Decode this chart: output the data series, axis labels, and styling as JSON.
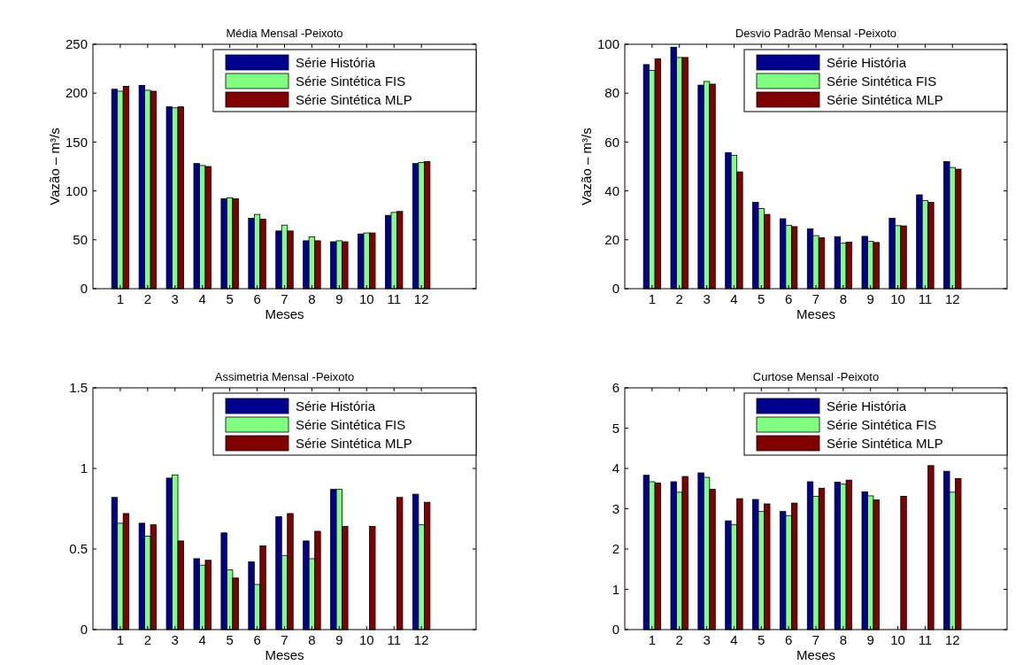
{
  "chart_data": [
    {
      "type": "bar",
      "title": "Média Mensal -Peixoto",
      "xlabel": "Meses",
      "ylabel": "Vazão – m³/s",
      "x": [
        1,
        2,
        3,
        4,
        5,
        6,
        7,
        8,
        9,
        10,
        11,
        12
      ],
      "xlim": [
        0,
        14
      ],
      "xticks": [
        1,
        2,
        3,
        4,
        5,
        6,
        7,
        8,
        9,
        10,
        11,
        12
      ],
      "ylim": [
        0,
        250
      ],
      "yticks": [
        0,
        50,
        100,
        150,
        200,
        250
      ],
      "legend": "top right",
      "series": [
        {
          "name": "Série História",
          "color": "#00008f",
          "values": [
            204,
            208,
            186,
            128,
            92,
            72,
            59,
            49,
            48,
            56,
            75,
            128
          ]
        },
        {
          "name": "Série Sintética FIS",
          "color": "#80ff80",
          "values": [
            202,
            203,
            185,
            126,
            93,
            76,
            65,
            53,
            49,
            57,
            78,
            129
          ]
        },
        {
          "name": "Série Sintética MLP",
          "color": "#800000",
          "values": [
            207,
            202,
            186,
            125,
            92,
            71,
            59,
            49,
            48,
            57,
            79,
            130
          ]
        }
      ]
    },
    {
      "type": "bar",
      "title": "Desvio Padrão Mensal -Peixoto",
      "xlabel": "Meses",
      "ylabel": "Vazão – m³/s",
      "x": [
        1,
        2,
        3,
        4,
        5,
        6,
        7,
        8,
        9,
        10,
        11,
        12
      ],
      "xlim": [
        0,
        14
      ],
      "xticks": [
        1,
        2,
        3,
        4,
        5,
        6,
        7,
        8,
        9,
        10,
        11,
        12
      ],
      "ylim": [
        0,
        100
      ],
      "yticks": [
        0,
        20,
        40,
        60,
        80,
        100
      ],
      "legend": "top right",
      "series": [
        {
          "name": "Série História",
          "color": "#00008f",
          "values": [
            91.7,
            98.8,
            83.3,
            55.7,
            35.3,
            28.6,
            24.5,
            21.3,
            21.4,
            28.8,
            38.4,
            52
          ]
        },
        {
          "name": "Série Sintética FIS",
          "color": "#80ff80",
          "values": [
            89.3,
            94.6,
            84.8,
            54.6,
            32.8,
            25.9,
            21.7,
            18.6,
            19.4,
            25.8,
            36,
            49.6
          ]
        },
        {
          "name": "Série Sintética MLP",
          "color": "#800000",
          "values": [
            94,
            94.6,
            83.7,
            47.8,
            30.4,
            25.4,
            20.8,
            19,
            18.9,
            25.7,
            35.3,
            48.9
          ]
        }
      ]
    },
    {
      "type": "bar",
      "title": "Assimetria Mensal -Peixoto",
      "xlabel": "Meses",
      "x": [
        1,
        2,
        3,
        4,
        5,
        6,
        7,
        8,
        9,
        10,
        11,
        12
      ],
      "xlim": [
        0,
        14
      ],
      "xticks": [
        1,
        2,
        3,
        4,
        5,
        6,
        7,
        8,
        9,
        10,
        11,
        12
      ],
      "ylim": [
        0,
        1.5
      ],
      "yticks": [
        0,
        0.5,
        1,
        1.5
      ],
      "legend": "top right",
      "series": [
        {
          "name": "Série História",
          "color": "#00008f",
          "values": [
            0.82,
            0.66,
            0.94,
            0.44,
            0.6,
            0.42,
            0.7,
            0.55,
            0.87,
            null,
            null,
            0.84
          ]
        },
        {
          "name": "Série Sintética FIS",
          "color": "#80ff80",
          "values": [
            0.66,
            0.58,
            0.96,
            0.4,
            0.37,
            0.28,
            0.46,
            0.44,
            0.87,
            null,
            null,
            0.65
          ]
        },
        {
          "name": "Série Sintética MLP",
          "color": "#800000",
          "values": [
            0.72,
            0.65,
            0.55,
            0.43,
            0.32,
            0.52,
            0.72,
            0.61,
            0.64,
            0.64,
            0.82,
            0.79
          ]
        }
      ]
    },
    {
      "type": "bar",
      "title": "Curtose Mensal -Peixoto",
      "xlabel": "Meses",
      "x": [
        1,
        2,
        3,
        4,
        5,
        6,
        7,
        8,
        9,
        10,
        11,
        12
      ],
      "xlim": [
        0,
        14
      ],
      "xticks": [
        1,
        2,
        3,
        4,
        5,
        6,
        7,
        8,
        9,
        10,
        11,
        12
      ],
      "ylim": [
        0,
        6
      ],
      "yticks": [
        0,
        1,
        2,
        3,
        4,
        5,
        6
      ],
      "legend": "top right",
      "series": [
        {
          "name": "Série História",
          "color": "#00008f",
          "values": [
            3.83,
            3.67,
            3.89,
            2.7,
            3.23,
            2.93,
            3.67,
            3.66,
            3.42,
            null,
            null,
            3.93
          ]
        },
        {
          "name": "Série Sintética FIS",
          "color": "#80ff80",
          "values": [
            3.67,
            3.41,
            3.78,
            2.6,
            2.93,
            2.83,
            3.31,
            3.61,
            3.32,
            null,
            null,
            3.41
          ]
        },
        {
          "name": "Série Sintética MLP",
          "color": "#800000",
          "values": [
            3.64,
            3.8,
            3.48,
            3.25,
            3.12,
            3.14,
            3.51,
            3.71,
            3.22,
            3.31,
            4.07,
            3.75
          ]
        }
      ]
    }
  ]
}
